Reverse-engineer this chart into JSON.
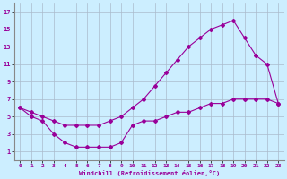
{
  "xlabel": "Windchill (Refroidissement éolien,°C)",
  "bg_color": "#cceeff",
  "line_color": "#990099",
  "grid_color": "#aabbcc",
  "xlim": [
    -0.5,
    23.5
  ],
  "ylim": [
    0,
    18
  ],
  "xticks": [
    0,
    1,
    2,
    3,
    4,
    5,
    6,
    7,
    8,
    9,
    10,
    11,
    12,
    13,
    14,
    15,
    16,
    17,
    18,
    19,
    20,
    21,
    22,
    23
  ],
  "yticks": [
    1,
    3,
    5,
    7,
    9,
    11,
    13,
    15,
    17
  ],
  "line1_x": [
    0,
    1,
    2,
    3,
    4,
    5,
    6,
    7,
    8,
    9,
    10,
    11,
    12,
    13,
    14,
    15,
    16,
    17,
    18,
    19,
    20,
    21,
    22,
    23
  ],
  "line1_y": [
    6,
    5.5,
    5,
    4.5,
    4,
    4,
    4,
    4,
    4.5,
    5,
    6,
    7,
    8.5,
    10,
    11.5,
    13,
    14,
    15,
    15.5,
    16,
    14,
    12,
    11,
    6.5
  ],
  "line2_x": [
    0,
    1,
    2,
    3,
    4,
    5,
    6,
    7,
    8,
    9,
    10,
    11,
    12,
    13,
    14,
    15,
    16,
    17,
    18,
    19,
    20,
    21,
    22,
    23
  ],
  "line2_y": [
    6,
    5,
    4.5,
    3,
    2,
    1.5,
    1.5,
    1.5,
    1.5,
    2,
    4,
    4.5,
    4.5,
    5,
    5.5,
    5.5,
    6,
    6.5,
    6.5,
    7,
    7,
    7,
    7,
    6.5
  ]
}
